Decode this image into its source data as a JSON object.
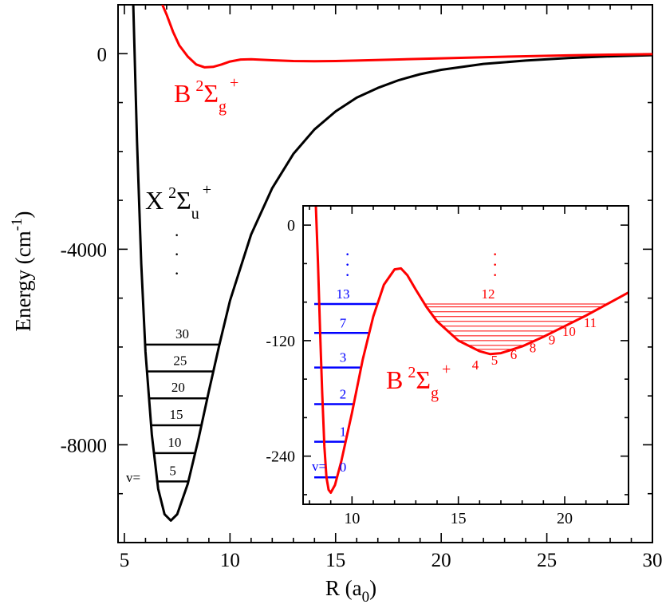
{
  "chart_data": [
    {
      "type": "line",
      "xlabel_main": "R (a",
      "xlabel_sub": "0",
      "xlabel_close": ")",
      "ylabel_main": "Energy (cm",
      "ylabel_sup": "-1",
      "ylabel_close": ")",
      "xlim": [
        4.7,
        30
      ],
      "ylim": [
        -10000,
        1000
      ],
      "xticks": [
        {
          "v": 5,
          "label": "5"
        },
        {
          "v": 10,
          "label": "10"
        },
        {
          "v": 15,
          "label": "15"
        },
        {
          "v": 20,
          "label": "20"
        },
        {
          "v": 25,
          "label": "25"
        },
        {
          "v": 30,
          "label": "30"
        }
      ],
      "yticks": [
        {
          "v": 0,
          "label": "0"
        },
        {
          "v": -4000,
          "label": "-4000"
        },
        {
          "v": -8000,
          "label": "-8000"
        }
      ],
      "series": [
        {
          "color": "#000000",
          "points": [
            [
              5.42,
              1000
            ],
            [
              5.6,
              -1800
            ],
            [
              5.8,
              -4300
            ],
            [
              6.0,
              -6100
            ],
            [
              6.3,
              -7800
            ],
            [
              6.6,
              -8900
            ],
            [
              6.9,
              -9420
            ],
            [
              7.2,
              -9550
            ],
            [
              7.5,
              -9420
            ],
            [
              8.0,
              -8800
            ],
            [
              8.5,
              -7900
            ],
            [
              9.0,
              -6900
            ],
            [
              9.5,
              -5950
            ],
            [
              10.0,
              -5050
            ],
            [
              11.0,
              -3700
            ],
            [
              12.0,
              -2750
            ],
            [
              13.0,
              -2050
            ],
            [
              14.0,
              -1550
            ],
            [
              15.0,
              -1180
            ],
            [
              16.0,
              -900
            ],
            [
              17.0,
              -700
            ],
            [
              18.0,
              -540
            ],
            [
              19.0,
              -420
            ],
            [
              20.0,
              -330
            ],
            [
              22.0,
              -210
            ],
            [
              24.0,
              -140
            ],
            [
              26.0,
              -90
            ],
            [
              28.0,
              -55
            ],
            [
              30.0,
              -30
            ]
          ]
        },
        {
          "color": "#ff0000",
          "points": [
            [
              6.8,
              1000
            ],
            [
              7.0,
              800
            ],
            [
              7.3,
              450
            ],
            [
              7.6,
              170
            ],
            [
              8.0,
              -60
            ],
            [
              8.4,
              -220
            ],
            [
              8.8,
              -280
            ],
            [
              9.2,
              -270
            ],
            [
              9.6,
              -220
            ],
            [
              10.0,
              -160
            ],
            [
              10.5,
              -120
            ],
            [
              11.0,
              -115
            ],
            [
              12.0,
              -135
            ],
            [
              13.0,
              -150
            ],
            [
              14.0,
              -155
            ],
            [
              15.0,
              -150
            ],
            [
              16.0,
              -140
            ],
            [
              18.0,
              -118
            ],
            [
              20.0,
              -95
            ],
            [
              22.0,
              -72
            ],
            [
              24.0,
              -52
            ],
            [
              26.0,
              -35
            ],
            [
              28.0,
              -20
            ],
            [
              30.0,
              -10
            ]
          ]
        }
      ],
      "labels": [
        {
          "id": "b-state-main",
          "base": "B",
          "sup": "2",
          "sigma": "Σ",
          "sub": "g",
          "sup2": "+",
          "color": "#ff0000"
        },
        {
          "id": "x-state",
          "base": "X",
          "sup": "2",
          "sigma": "Σ",
          "sub": "u",
          "sup2": "+",
          "color": "#000000"
        }
      ],
      "vib_levels_X": [
        {
          "energy": -8750,
          "label": "5"
        },
        {
          "energy": -8170,
          "label": "10"
        },
        {
          "energy": -7600,
          "label": "15"
        },
        {
          "energy": -7050,
          "label": "20"
        },
        {
          "energy": -6500,
          "label": "25"
        },
        {
          "energy": -5950,
          "label": "30"
        }
      ],
      "v_label": "v=",
      "vdots": "·"
    },
    {
      "type": "line",
      "inset": true,
      "xlim": [
        7.7,
        23
      ],
      "ylim": [
        -290,
        20
      ],
      "xticks": [
        {
          "v": 10,
          "label": "10"
        },
        {
          "v": 15,
          "label": "15"
        },
        {
          "v": 20,
          "label": "20"
        }
      ],
      "yticks": [
        {
          "v": 0,
          "label": "0"
        },
        {
          "v": -120,
          "label": "-120"
        },
        {
          "v": -240,
          "label": "-240"
        }
      ],
      "series": [
        {
          "color": "#ff0000",
          "points": [
            [
              8.3,
              20
            ],
            [
              8.4,
              -40
            ],
            [
              8.5,
              -110
            ],
            [
              8.6,
              -175
            ],
            [
              8.7,
              -230
            ],
            [
              8.8,
              -262
            ],
            [
              8.9,
              -275
            ],
            [
              9.0,
              -278
            ],
            [
              9.2,
              -270
            ],
            [
              9.5,
              -245
            ],
            [
              10.0,
              -195
            ],
            [
              10.5,
              -140
            ],
            [
              11.0,
              -95
            ],
            [
              11.5,
              -62
            ],
            [
              12.0,
              -46
            ],
            [
              12.3,
              -45
            ],
            [
              12.6,
              -52
            ],
            [
              13.0,
              -67
            ],
            [
              13.5,
              -85
            ],
            [
              14.0,
              -100
            ],
            [
              15.0,
              -120
            ],
            [
              16.0,
              -131
            ],
            [
              16.5,
              -134
            ],
            [
              17.0,
              -133
            ],
            [
              18.0,
              -126
            ],
            [
              19.0,
              -116
            ],
            [
              20.0,
              -105
            ],
            [
              21.0,
              -94
            ],
            [
              22.0,
              -82
            ],
            [
              23.0,
              -70
            ]
          ]
        }
      ],
      "label": {
        "base": "B",
        "sup": "2",
        "sigma": "Σ",
        "sub": "g",
        "sup2": "+",
        "color": "#ff0000"
      },
      "blue_levels": [
        {
          "energy": -262,
          "label": "0"
        },
        {
          "energy": -225,
          "label": "1"
        },
        {
          "energy": -186,
          "label": "2"
        },
        {
          "energy": -148,
          "label": "3"
        },
        {
          "energy": -112,
          "label": "7"
        },
        {
          "energy": -82,
          "label": "13"
        }
      ],
      "blue_v_label": "v=",
      "red_levels_energy": [
        -129,
        -125,
        -120,
        -115,
        -110,
        -105,
        -100,
        -95,
        -90,
        -85,
        -82
      ],
      "red_level_labels": [
        {
          "label": "4",
          "x": 15.8,
          "y": -150
        },
        {
          "label": "5",
          "x": 16.7,
          "y": -145
        },
        {
          "label": "6",
          "x": 17.6,
          "y": -139
        },
        {
          "label": "8",
          "x": 18.5,
          "y": -132
        },
        {
          "label": "9",
          "x": 19.4,
          "y": -124
        },
        {
          "label": "10",
          "x": 20.2,
          "y": -115
        },
        {
          "label": "11",
          "x": 21.2,
          "y": -106
        },
        {
          "label": "12",
          "x": 16.4,
          "y": -76
        }
      ],
      "vdots": "·"
    }
  ]
}
